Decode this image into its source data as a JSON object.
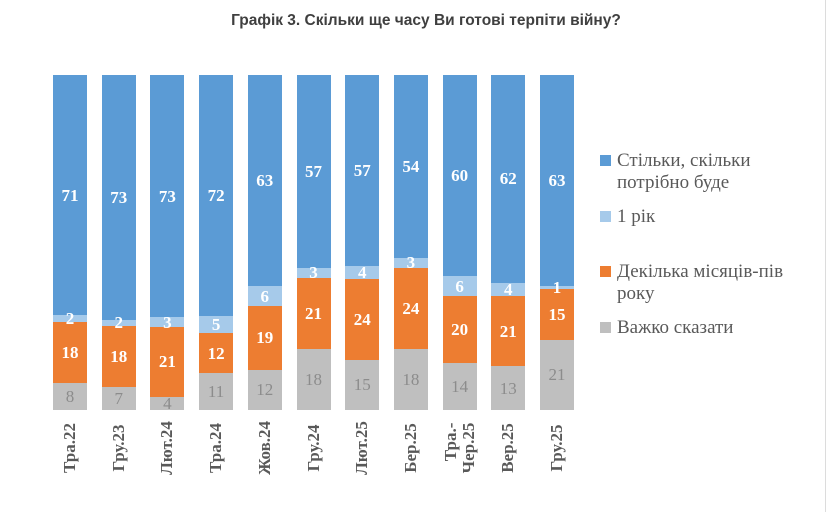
{
  "title": "Графік 3. Скільки ще часу Ви готові терпіти війну?",
  "chart_data": {
    "type": "bar",
    "subtype": "stacked-100-percent",
    "title": "Графік 3. Скільки ще часу Ви готові терпіти війну?",
    "grid": false,
    "axes_visible": false,
    "ylim": [
      0,
      100
    ],
    "legend_position": "right",
    "categories": [
      "Тра.22",
      "Гру.23",
      "Лют.24",
      "Тра.24",
      "Жов.24",
      "Гру.24",
      "Лют.25",
      "Бер.25",
      "Тра.-\nЧер.25",
      "Вер.25",
      "Гру.25"
    ],
    "series": [
      {
        "name": "Стільки, скільки потрібно буде",
        "color": "#5B9BD5",
        "label_color": "#ffffff",
        "label_bold": true,
        "values": [
          71,
          73,
          73,
          72,
          63,
          57,
          57,
          54,
          60,
          62,
          63
        ]
      },
      {
        "name": "1 рік",
        "color": "#A6CAEA",
        "label_color": "#ffffff",
        "label_bold": true,
        "values": [
          2,
          2,
          3,
          5,
          6,
          3,
          4,
          3,
          6,
          4,
          1
        ]
      },
      {
        "name": "Декілька місяців-пів року",
        "color": "#ED7D31",
        "label_color": "#ffffff",
        "label_bold": true,
        "values": [
          18,
          18,
          21,
          12,
          19,
          21,
          24,
          24,
          20,
          21,
          15
        ]
      },
      {
        "name": "Важко сказати",
        "color": "#BFBFBF",
        "label_color": "#8C8C8C",
        "label_bold": false,
        "values": [
          8,
          7,
          4,
          11,
          12,
          18,
          15,
          18,
          14,
          13,
          21
        ]
      }
    ]
  },
  "legend": {
    "items": [
      {
        "label": "Стільки, скільки\nпотрібно буде",
        "color": "#5B9BD5"
      },
      {
        "label": "1 рік",
        "color": "#A6CAEA"
      },
      {
        "label": "Декілька місяців-пів\nроку",
        "color": "#ED7D31"
      },
      {
        "label": "Важко сказати",
        "color": "#BFBFBF"
      }
    ]
  },
  "colors": {
    "title_text": "#3F3F3F",
    "axis_text": "#595959",
    "legend_text": "#595959"
  }
}
